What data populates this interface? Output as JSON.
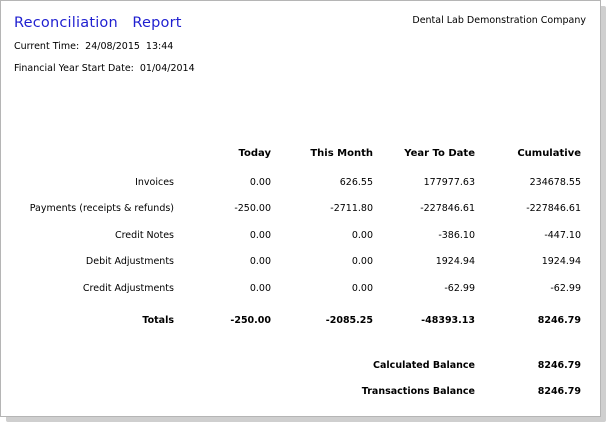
{
  "report": {
    "title_part1": "Reconciliation",
    "title_part2": "Report",
    "company": "Dental Lab Demonstration Company",
    "current_time_label": "Current Time:",
    "current_date": "24/08/2015",
    "current_time": "13:44",
    "fy_label": "Financial Year Start Date:",
    "fy_date": "01/04/2014"
  },
  "table": {
    "columns": [
      "Today",
      "This Month",
      "Year To Date",
      "Cumulative"
    ],
    "rows": [
      {
        "label": "Invoices",
        "values": [
          "0.00",
          "626.55",
          "177977.63",
          "234678.55"
        ]
      },
      {
        "label": "Payments (receipts & refunds)",
        "values": [
          "-250.00",
          "-2711.80",
          "-227846.61",
          "-227846.61"
        ]
      },
      {
        "label": "Credit Notes",
        "values": [
          "0.00",
          "0.00",
          "-386.10",
          "-447.10"
        ]
      },
      {
        "label": "Debit Adjustments",
        "values": [
          "0.00",
          "0.00",
          "1924.94",
          "1924.94"
        ]
      },
      {
        "label": "Credit Adjustments",
        "values": [
          "0.00",
          "0.00",
          "-62.99",
          "-62.99"
        ]
      }
    ],
    "totals": {
      "label": "Totals",
      "values": [
        "-250.00",
        "-2085.25",
        "-48393.13",
        "8246.79"
      ]
    }
  },
  "balances": {
    "calculated_label": "Calculated Balance",
    "calculated_value": "8246.79",
    "transactions_label": "Transactions Balance",
    "transactions_value": "8246.79"
  }
}
